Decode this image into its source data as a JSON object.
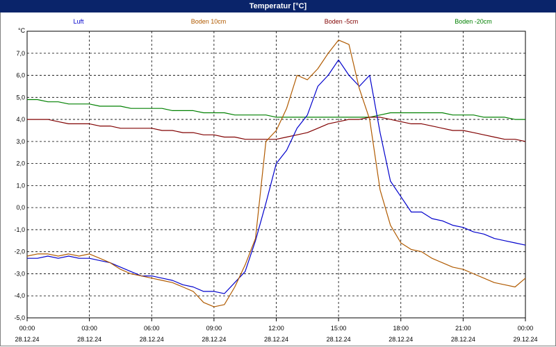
{
  "window": {
    "title": "Temperatur [°C]"
  },
  "chart_data": {
    "type": "line",
    "title": "Temperatur [°C]",
    "ylabel": "°C",
    "ylim": [
      -5.0,
      8.0
    ],
    "y_ticks": [
      "-5,0",
      "-4,0",
      "-3,0",
      "-2,0",
      "-1,0",
      "0,0",
      "1,0",
      "2,0",
      "3,0",
      "4,0",
      "5,0",
      "6,0",
      "7,0"
    ],
    "x_ticks": [
      {
        "time": "00:00",
        "date": "28.12.24"
      },
      {
        "time": "03:00",
        "date": "28.12.24"
      },
      {
        "time": "06:00",
        "date": "28.12.24"
      },
      {
        "time": "09:00",
        "date": "28.12.24"
      },
      {
        "time": "12:00",
        "date": "28.12.24"
      },
      {
        "time": "15:00",
        "date": "28.12.24"
      },
      {
        "time": "18:00",
        "date": "28.12.24"
      },
      {
        "time": "21:00",
        "date": "28.12.24"
      },
      {
        "time": "00:00",
        "date": "29.12.24"
      }
    ],
    "grid": true,
    "legend_placement": "top",
    "x_hours": [
      0,
      0.5,
      1,
      1.5,
      2,
      2.5,
      3,
      3.5,
      4,
      4.5,
      5,
      5.5,
      6,
      6.5,
      7,
      7.5,
      8,
      8.5,
      9,
      9.5,
      10,
      10.5,
      11,
      11.5,
      12,
      12.5,
      13,
      13.5,
      14,
      14.5,
      15,
      15.5,
      16,
      16.5,
      17,
      17.5,
      18,
      18.5,
      19,
      19.5,
      20,
      20.5,
      21,
      21.5,
      22,
      22.5,
      23,
      23.5,
      24
    ],
    "series": [
      {
        "name": "Luft",
        "color": "#0000cc",
        "values": [
          -2.3,
          -2.3,
          -2.2,
          -2.3,
          -2.2,
          -2.3,
          -2.3,
          -2.4,
          -2.5,
          -2.7,
          -2.9,
          -3.1,
          -3.1,
          -3.2,
          -3.3,
          -3.5,
          -3.6,
          -3.8,
          -3.8,
          -3.9,
          -3.4,
          -2.9,
          -1.5,
          0.2,
          2.0,
          2.6,
          3.6,
          4.2,
          5.5,
          6.0,
          6.7,
          6.0,
          5.5,
          6.0,
          3.4,
          1.2,
          0.5,
          -0.2,
          -0.2,
          -0.5,
          -0.6,
          -0.8,
          -0.9,
          -1.1,
          -1.2,
          -1.4,
          -1.5,
          -1.6,
          -1.7
        ]
      },
      {
        "name": "Boden 10cm",
        "color": "#b05a00",
        "values": [
          -2.2,
          -2.1,
          -2.1,
          -2.2,
          -2.1,
          -2.2,
          -2.1,
          -2.3,
          -2.5,
          -2.8,
          -3.0,
          -3.1,
          -3.2,
          -3.3,
          -3.4,
          -3.6,
          -3.8,
          -4.3,
          -4.5,
          -4.4,
          -3.6,
          -2.6,
          -1.4,
          3.0,
          3.5,
          4.5,
          6.0,
          5.8,
          6.3,
          7.0,
          7.6,
          7.4,
          5.4,
          4.0,
          0.8,
          -0.8,
          -1.6,
          -1.9,
          -2.0,
          -2.3,
          -2.5,
          -2.7,
          -2.8,
          -3.0,
          -3.2,
          -3.4,
          -3.5,
          -3.6,
          -3.2
        ]
      },
      {
        "name": "Boden -5cm",
        "color": "#800000",
        "values": [
          4.0,
          4.0,
          4.0,
          3.9,
          3.8,
          3.8,
          3.8,
          3.7,
          3.7,
          3.6,
          3.6,
          3.6,
          3.6,
          3.5,
          3.5,
          3.4,
          3.4,
          3.3,
          3.3,
          3.2,
          3.2,
          3.1,
          3.1,
          3.1,
          3.1,
          3.2,
          3.3,
          3.4,
          3.6,
          3.8,
          3.9,
          4.0,
          4.0,
          4.1,
          4.1,
          4.0,
          3.9,
          3.8,
          3.8,
          3.7,
          3.6,
          3.5,
          3.5,
          3.4,
          3.3,
          3.2,
          3.1,
          3.1,
          3.0
        ]
      },
      {
        "name": "Boden -20cm",
        "color": "#008000",
        "values": [
          4.9,
          4.9,
          4.8,
          4.8,
          4.7,
          4.7,
          4.7,
          4.6,
          4.6,
          4.6,
          4.5,
          4.5,
          4.5,
          4.5,
          4.4,
          4.4,
          4.4,
          4.3,
          4.3,
          4.3,
          4.2,
          4.2,
          4.2,
          4.2,
          4.1,
          4.1,
          4.1,
          4.1,
          4.1,
          4.1,
          4.1,
          4.1,
          4.1,
          4.1,
          4.2,
          4.3,
          4.3,
          4.3,
          4.3,
          4.3,
          4.3,
          4.2,
          4.2,
          4.2,
          4.1,
          4.1,
          4.1,
          4.0,
          4.0
        ]
      }
    ]
  }
}
